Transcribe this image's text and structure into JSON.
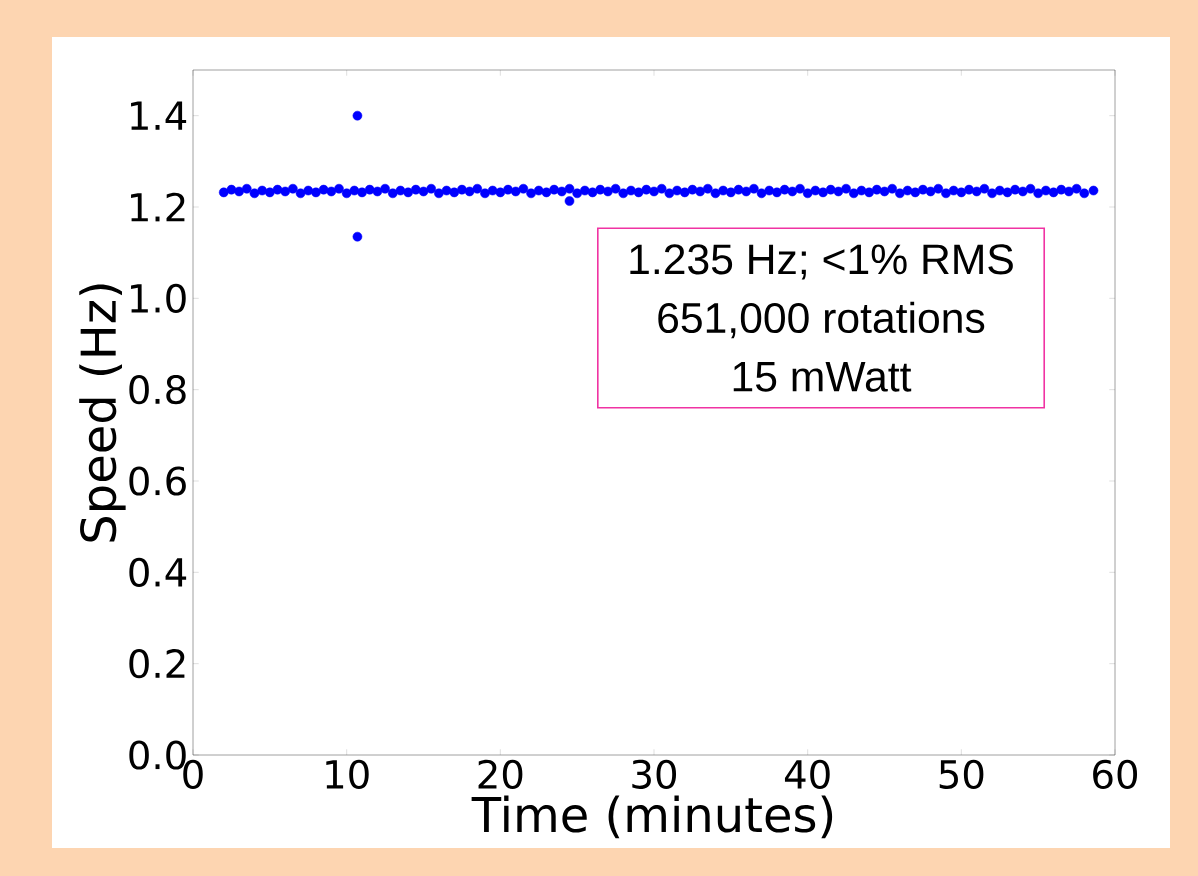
{
  "chart_data": {
    "type": "scatter",
    "xlabel": "Time (minutes)",
    "ylabel": "Speed (Hz)",
    "xlim": [
      0,
      60
    ],
    "ylim": [
      0,
      1.5
    ],
    "xticks": [
      0,
      10,
      20,
      30,
      40,
      50,
      60
    ],
    "yticks": [
      {
        "value": 0,
        "label": "0.0"
      },
      0.2,
      0.4,
      0.6,
      0.8,
      {
        "value": 1,
        "label": "1.0"
      },
      1.2,
      1.4
    ],
    "grid": false,
    "marker": "circle",
    "annotations": [
      "1.235 Hz; <1% RMS",
      "651,000 rotations",
      "15 mWatt"
    ],
    "series": [
      {
        "color": "#0000ff",
        "x": [
          2.0,
          2.5,
          3.0,
          3.5,
          4.0,
          4.5,
          5.0,
          5.5,
          6.0,
          6.5,
          7.0,
          7.5,
          8.0,
          8.5,
          9.0,
          9.5,
          10.0,
          10.5,
          11.0,
          11.5,
          12.0,
          12.5,
          13.0,
          13.5,
          14.0,
          14.5,
          15.0,
          15.5,
          16.0,
          16.5,
          17.0,
          17.5,
          18.0,
          18.5,
          19.0,
          19.5,
          20.0,
          20.5,
          21.0,
          21.5,
          22.0,
          22.5,
          23.0,
          23.5,
          24.0,
          24.5,
          25.0,
          25.5,
          26.0,
          26.5,
          27.0,
          27.5,
          28.0,
          28.5,
          29.0,
          29.5,
          30.0,
          30.5,
          31.0,
          31.5,
          32.0,
          32.5,
          33.0,
          33.5,
          34.0,
          34.5,
          35.0,
          35.5,
          36.0,
          36.5,
          37.0,
          37.5,
          38.0,
          38.5,
          39.0,
          39.5,
          40.0,
          40.5,
          41.0,
          41.5,
          42.0,
          42.5,
          43.0,
          43.5,
          44.0,
          44.5,
          45.0,
          45.5,
          46.0,
          46.5,
          47.0,
          47.5,
          48.0,
          48.5,
          49.0,
          49.5,
          50.0,
          50.5,
          51.0,
          51.5,
          52.0,
          52.5,
          53.0,
          53.5,
          54.0,
          54.5,
          55.0,
          55.5,
          56.0,
          56.5,
          57.0,
          57.5,
          58.0,
          58.6,
          10.7,
          10.7,
          24.5
        ],
        "values": [
          1.232,
          1.238,
          1.234,
          1.24,
          1.23,
          1.236,
          1.232,
          1.238,
          1.234,
          1.24,
          1.23,
          1.236,
          1.232,
          1.238,
          1.234,
          1.24,
          1.23,
          1.236,
          1.232,
          1.238,
          1.234,
          1.24,
          1.23,
          1.236,
          1.232,
          1.238,
          1.234,
          1.24,
          1.23,
          1.236,
          1.232,
          1.238,
          1.234,
          1.24,
          1.23,
          1.236,
          1.232,
          1.238,
          1.234,
          1.24,
          1.23,
          1.236,
          1.232,
          1.238,
          1.234,
          1.24,
          1.23,
          1.236,
          1.232,
          1.238,
          1.234,
          1.24,
          1.23,
          1.236,
          1.232,
          1.238,
          1.234,
          1.24,
          1.23,
          1.236,
          1.232,
          1.238,
          1.234,
          1.24,
          1.23,
          1.236,
          1.232,
          1.238,
          1.234,
          1.24,
          1.23,
          1.236,
          1.232,
          1.238,
          1.234,
          1.24,
          1.23,
          1.236,
          1.232,
          1.238,
          1.234,
          1.24,
          1.23,
          1.236,
          1.232,
          1.238,
          1.234,
          1.24,
          1.23,
          1.236,
          1.232,
          1.238,
          1.234,
          1.24,
          1.23,
          1.236,
          1.232,
          1.238,
          1.234,
          1.24,
          1.23,
          1.236,
          1.232,
          1.238,
          1.234,
          1.24,
          1.23,
          1.236,
          1.232,
          1.238,
          1.234,
          1.24,
          1.23,
          1.236,
          1.4,
          1.135,
          1.213
        ]
      }
    ]
  }
}
